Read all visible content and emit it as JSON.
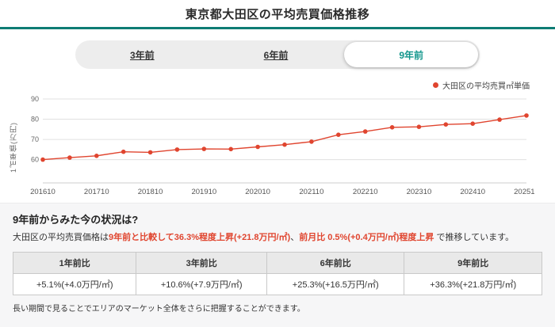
{
  "header": {
    "title": "東京都大田区の平均売買価格推移"
  },
  "accent_color": "#0e7c74",
  "tabs": [
    {
      "id": "3y",
      "label": "3年前",
      "selected": false
    },
    {
      "id": "6y",
      "label": "6年前",
      "selected": false
    },
    {
      "id": "9y",
      "label": "9年前",
      "selected": true
    }
  ],
  "chart_data": {
    "type": "line",
    "legend": "大田区の平均売買㎡単価",
    "ylabel": "1㎡単価(万円)",
    "line_color": "#e0452f",
    "ylim": [
      48.5,
      90
    ],
    "yticks": [
      60,
      70,
      80,
      90
    ],
    "xticks": [
      "201610",
      "201710",
      "201810",
      "201910",
      "202010",
      "202110",
      "202210",
      "202310",
      "202410",
      "202510"
    ],
    "x": [
      "201610",
      "201704",
      "201710",
      "201804",
      "201810",
      "201904",
      "201910",
      "202004",
      "202010",
      "202104",
      "202110",
      "202204",
      "202210",
      "202304",
      "202310",
      "202404",
      "202410",
      "202504",
      "202510"
    ],
    "values": [
      60,
      61,
      61.9,
      63.9,
      63.6,
      65,
      65.3,
      65.2,
      66.3,
      67.4,
      68.9,
      72.3,
      73.9,
      76,
      76.2,
      77.4,
      77.8,
      79.8,
      81.8
    ],
    "grid": true,
    "legend_position": "top-right"
  },
  "summary": {
    "heading": "9年前からみた今の状況は?",
    "part1": "大田区の平均売買価格は",
    "part2": "9年前と比較して36.3%程度上昇(+21.8万円/㎡)",
    "part3": "、",
    "part4": "前月比 0.5%(+0.4万円/㎡)程度上昇",
    "part5": " で推移しています。"
  },
  "comparison_table": {
    "columns": [
      {
        "header": "1年前比",
        "value": "+5.1%(+4.0万円/㎡)"
      },
      {
        "header": "3年前比",
        "value": "+10.6%(+7.9万円/㎡)"
      },
      {
        "header": "6年前比",
        "value": "+25.3%(+16.5万円/㎡)"
      },
      {
        "header": "9年前比",
        "value": "+36.3%(+21.8万円/㎡)"
      }
    ]
  },
  "footer_note": "長い期間で見ることでエリアのマーケット全体をさらに把握することができます。"
}
